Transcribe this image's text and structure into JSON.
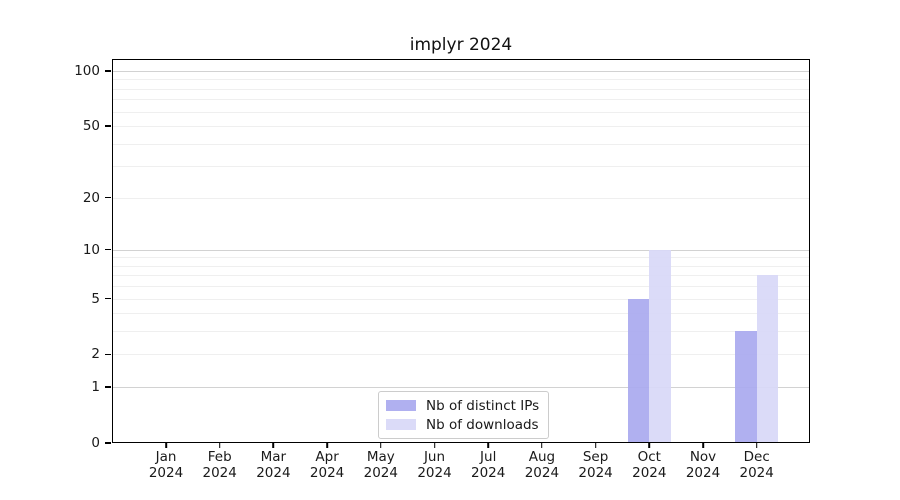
{
  "chart_data": {
    "type": "bar",
    "title": "implyr 2024",
    "categories": [
      "Jan",
      "Feb",
      "Mar",
      "Apr",
      "May",
      "Jun",
      "Jul",
      "Aug",
      "Sep",
      "Oct",
      "Nov",
      "Dec"
    ],
    "year_label": "2024",
    "series": [
      {
        "name": "Nb of distinct IPs",
        "color": "#aaaaef",
        "values": [
          0,
          0,
          0,
          0,
          0,
          0,
          0,
          0,
          0,
          5,
          0,
          3
        ]
      },
      {
        "name": "Nb of downloads",
        "color": "#d8d8f8",
        "values": [
          0,
          0,
          0,
          0,
          0,
          0,
          0,
          0,
          0,
          10,
          0,
          7
        ]
      }
    ],
    "y_ticks": [
      0,
      1,
      2,
      5,
      10,
      20,
      50,
      100
    ],
    "y_scale": "log1p",
    "ylim": [
      0,
      116
    ],
    "xlabel": "",
    "ylabel": "",
    "grid": {
      "horizontal": true,
      "vertical": false
    },
    "legend_position": "lower center"
  }
}
